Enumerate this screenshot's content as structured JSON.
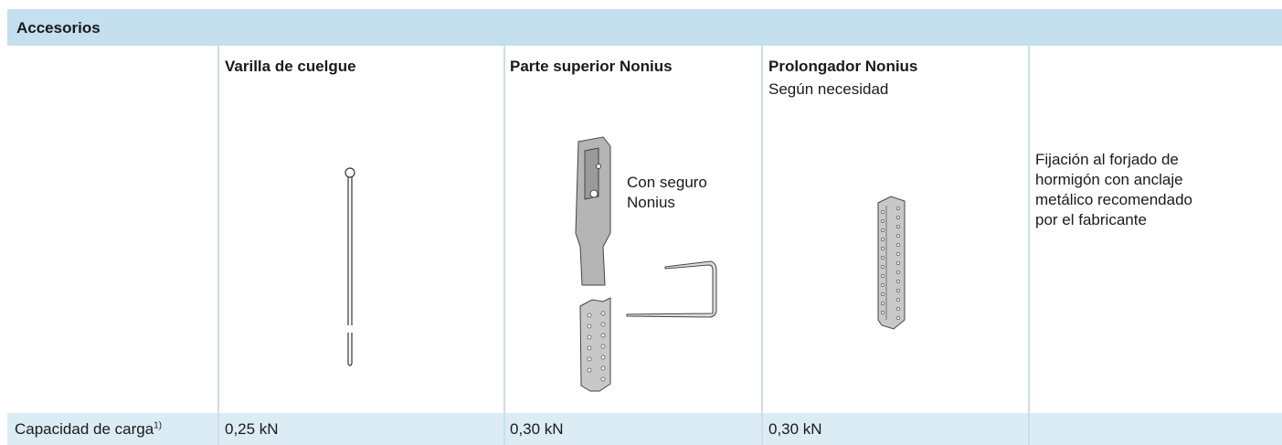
{
  "header": {
    "title": "Accesorios"
  },
  "columns": [
    {
      "title": "Varilla de cuelgue"
    },
    {
      "title": "Parte superior Nonius",
      "image_label": [
        "Con seguro",
        "Nonius"
      ]
    },
    {
      "title": "Prolongador Nonius",
      "subtitle": "Según necesidad"
    }
  ],
  "note": [
    "Fijación al forjado de",
    "hormigón con anclaje",
    "metálico recomendado",
    "por el fabricante"
  ],
  "footer": {
    "label": "Capacidad de carga",
    "superscript": "1)",
    "values": [
      "0,25 kN",
      "0,30 kN",
      "0,30 kN"
    ]
  }
}
